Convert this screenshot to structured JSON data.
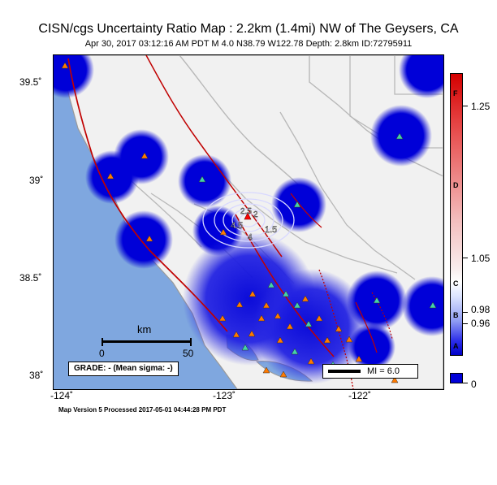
{
  "header": {
    "title": "CISN/cgs Uncertainty Ratio Map : 2.2km (1.4mi) NW of The Geysers, CA",
    "subtitle": "Apr 30, 2017 03:12:16 AM PDT   M 4.0   N38.79 W122.78   Depth: 2.8km   ID:72795911"
  },
  "map": {
    "latitude_labels": [
      "39.5˚",
      "39˚",
      "38.5˚",
      "38˚"
    ],
    "longitude_labels": [
      "-124˚",
      "-123˚",
      "-122˚"
    ],
    "contour_labels": [
      "2.5",
      "4.5",
      "1.5",
      "2",
      "4"
    ],
    "scale_bar": {
      "title": "km",
      "start": "0",
      "end": "50"
    },
    "grade_label": "GRADE: - (Mean sigma: -)",
    "mi_label": "MI = 6.0",
    "footer": "Map Version 5 Processed 2017-05-01 04:44:28 PM PDT"
  },
  "colorbar": {
    "labels": [
      "1.25",
      "1.05",
      "0.98",
      "0.96",
      "0"
    ],
    "grades": [
      "F",
      "D",
      "C",
      "B",
      "A"
    ]
  },
  "colors": {
    "ocean": "#7fa7df",
    "land": "#f1f1f1",
    "uncertainty_blue": "#0000d8",
    "fault": "#c00000",
    "station_orange": "#ff7a00",
    "station_teal": "#45d1a8",
    "epicenter_red": "#ff0000"
  }
}
